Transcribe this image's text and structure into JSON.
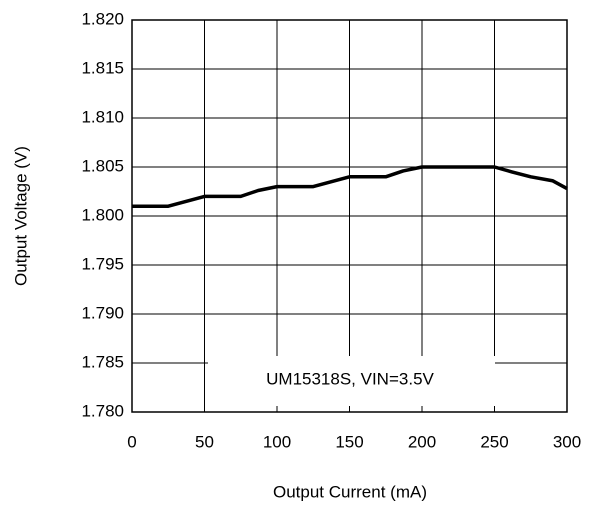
{
  "chart_data": {
    "type": "line",
    "xlabel": "Output Current (mA)",
    "ylabel": "Output Voltage (V)",
    "annotation": "UM15318S, VIN=3.5V",
    "x": [
      0,
      25,
      50,
      75,
      87,
      100,
      125,
      150,
      175,
      187,
      200,
      225,
      250,
      262,
      275,
      290,
      300
    ],
    "series": [
      {
        "name": "UM15318S, VIN=3.5V",
        "color": "#000000",
        "values": [
          1.801,
          1.801,
          1.802,
          1.802,
          1.8026,
          1.803,
          1.803,
          1.804,
          1.804,
          1.8046,
          1.805,
          1.805,
          1.805,
          1.8045,
          1.804,
          1.8036,
          1.8028
        ]
      }
    ],
    "xlim": [
      0,
      300
    ],
    "xticks": [
      0,
      50,
      100,
      150,
      200,
      250,
      300
    ],
    "ylim": [
      1.78,
      1.82
    ],
    "yticks": [
      {
        "value": 1.78,
        "label": "1.780"
      },
      {
        "value": 1.785,
        "label": "1.785"
      },
      {
        "value": 1.79,
        "label": "1.790"
      },
      {
        "value": 1.795,
        "label": "1.795"
      },
      {
        "value": 1.8,
        "label": "1.800"
      },
      {
        "value": 1.805,
        "label": "1.805"
      },
      {
        "value": 1.81,
        "label": "1.810"
      },
      {
        "value": 1.815,
        "label": "1.815"
      },
      {
        "value": 1.82,
        "label": "1.820"
      }
    ],
    "grid": true
  }
}
